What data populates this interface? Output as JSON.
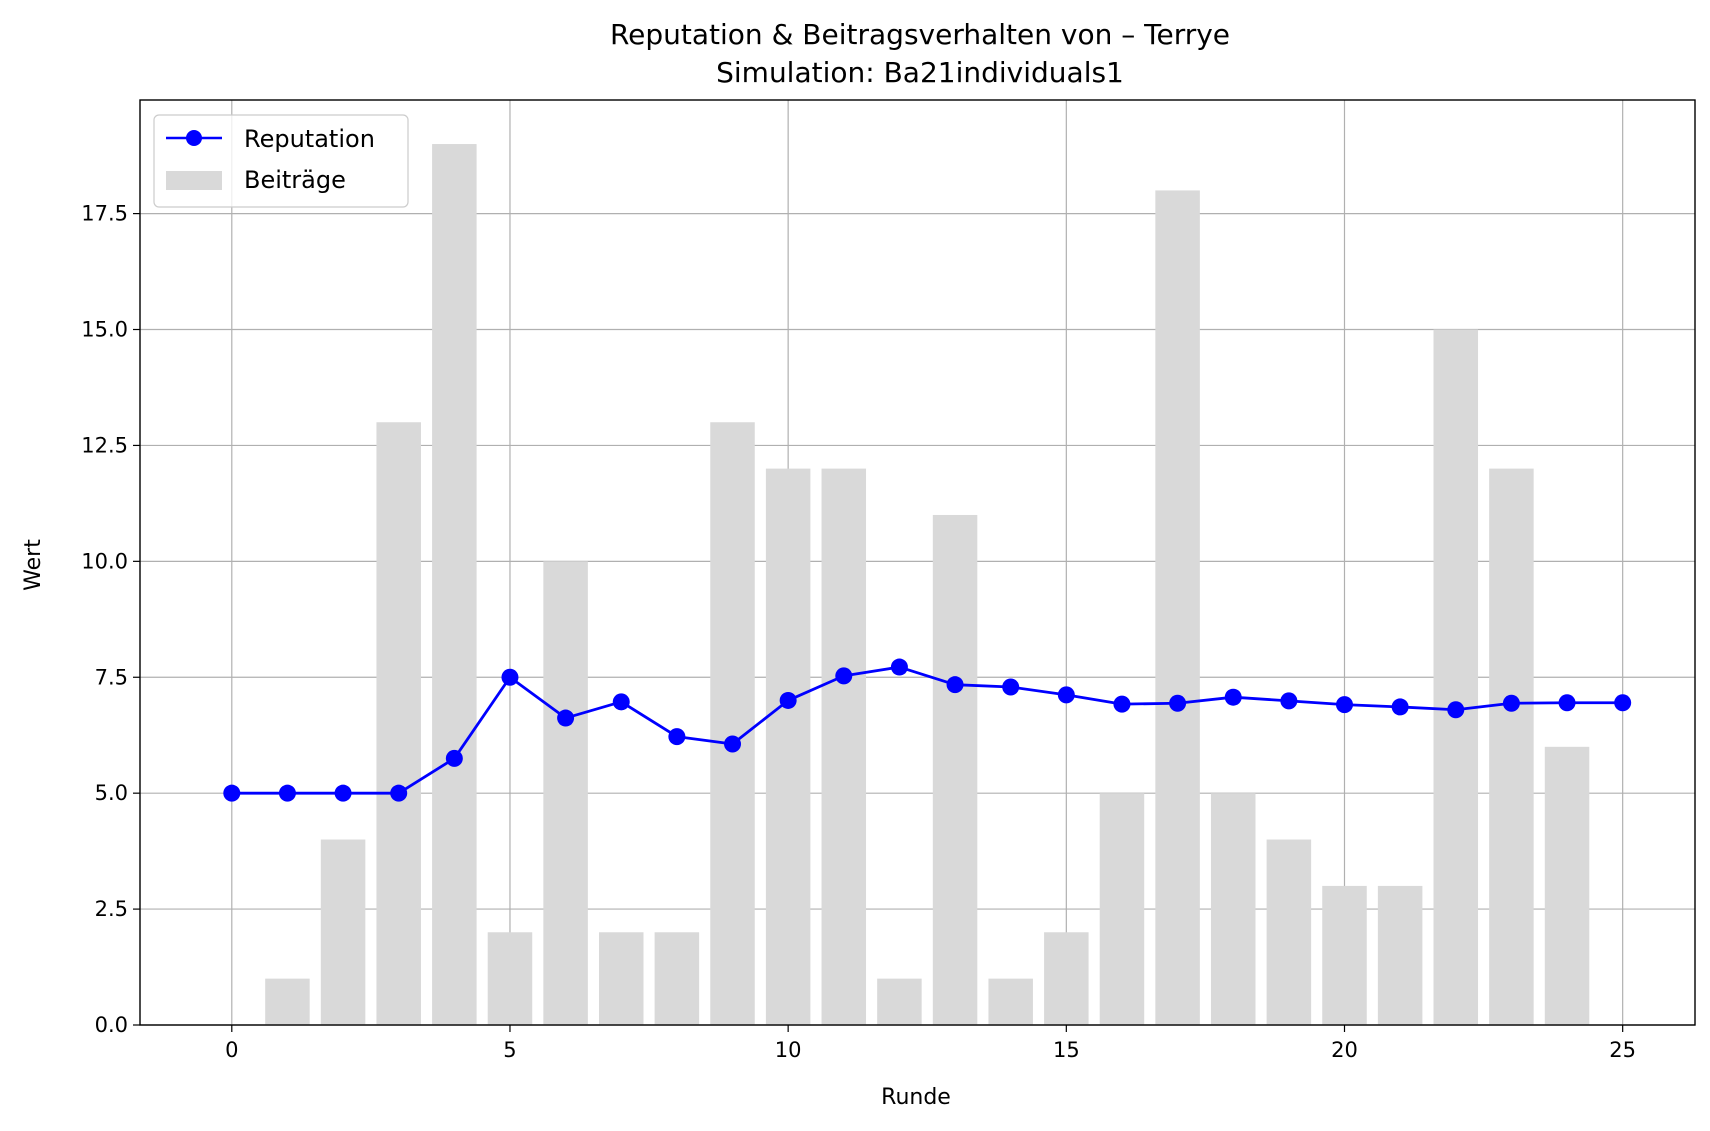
{
  "chart_data": {
    "type": "bar+line",
    "title": "Reputation & Beitragsverhalten von – Terrye",
    "subtitle": "Simulation: Ba21individuals1",
    "xlabel": "Runde",
    "ylabel": "Wert",
    "xlim": [
      -1.65,
      26.3
    ],
    "ylim": [
      0,
      19.95
    ],
    "xticks": [
      0,
      5,
      10,
      15,
      20,
      25
    ],
    "xtick_labels": [
      "0",
      "5",
      "10",
      "15",
      "20",
      "25"
    ],
    "yticks": [
      0,
      2.5,
      5,
      7.5,
      10,
      12.5,
      15,
      17.5
    ],
    "ytick_labels": [
      "0.0",
      "2.5",
      "5.0",
      "7.5",
      "10.0",
      "12.5",
      "15.0",
      "17.5"
    ],
    "grid": true,
    "legend_position": "top-left",
    "x": [
      0,
      1,
      2,
      3,
      4,
      5,
      6,
      7,
      8,
      9,
      10,
      11,
      12,
      13,
      14,
      15,
      16,
      17,
      18,
      19,
      20,
      21,
      22,
      23,
      24,
      25
    ],
    "series": [
      {
        "name": "Reputation",
        "type": "line",
        "color": "#0000ff",
        "values": [
          5.0,
          5.0,
          5.0,
          5.0,
          5.75,
          7.5,
          6.62,
          6.97,
          6.22,
          6.06,
          7.0,
          7.53,
          7.72,
          7.34,
          7.29,
          7.12,
          6.92,
          6.94,
          7.07,
          6.99,
          6.91,
          6.86,
          6.8,
          6.94,
          6.95,
          6.95
        ]
      },
      {
        "name": "Beiträge",
        "type": "bar",
        "color": "#d9d9d9",
        "values": [
          0,
          1,
          4,
          13,
          19,
          2,
          10,
          2,
          2,
          13,
          12,
          12,
          1,
          11,
          1,
          2,
          5,
          18,
          5,
          4,
          3,
          3,
          15,
          12,
          6,
          0
        ]
      }
    ]
  }
}
